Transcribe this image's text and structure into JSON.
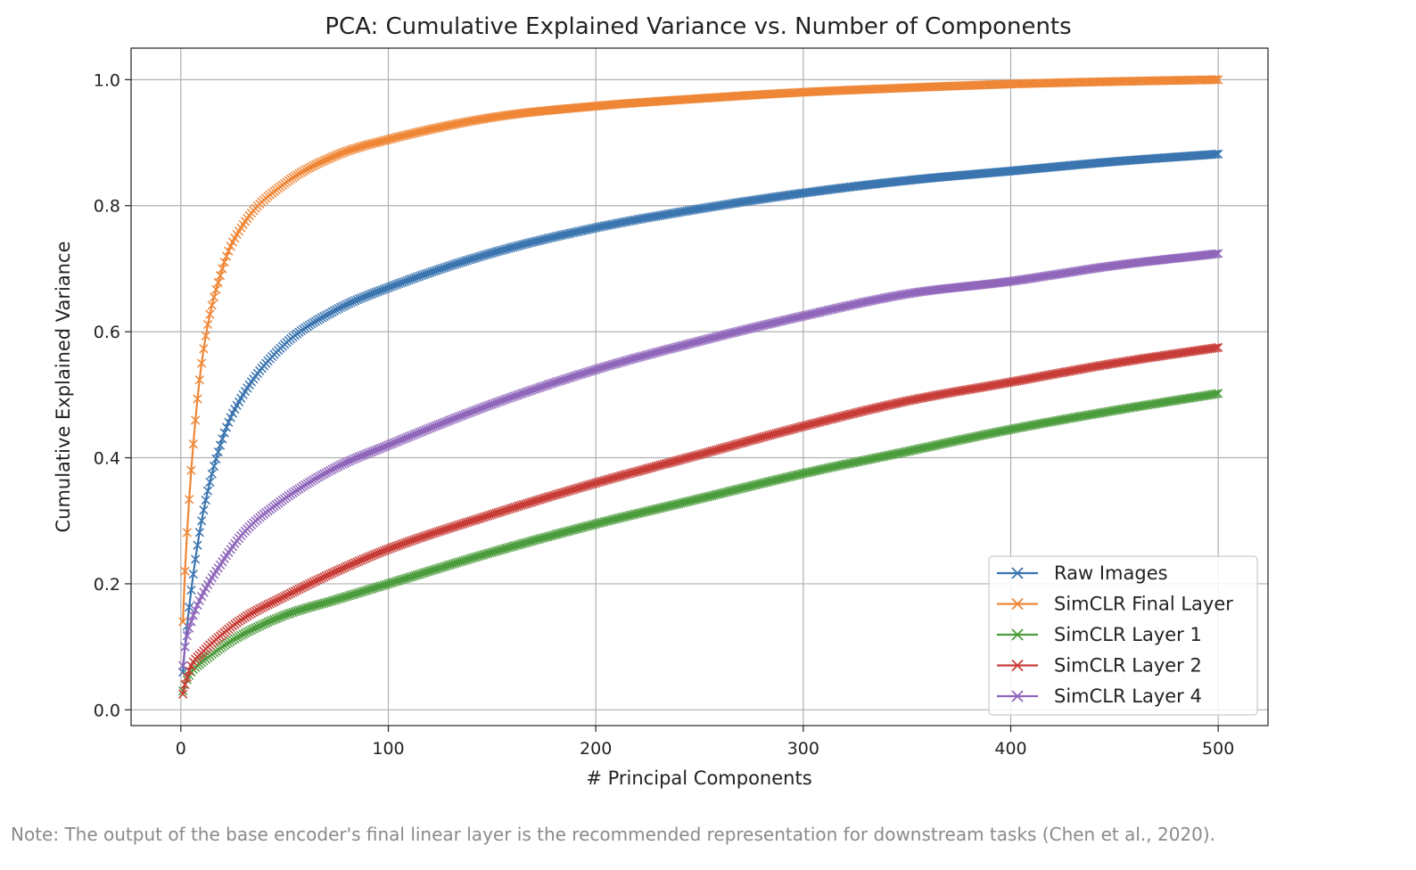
{
  "chart_data": {
    "type": "line",
    "title": "PCA: Cumulative Explained Variance vs. Number of Components",
    "xlabel": "# Principal Components",
    "ylabel": "Cumulative Explained Variance",
    "xlim": [
      -24,
      524
    ],
    "ylim": [
      -0.025,
      1.05
    ],
    "xticks": [
      0,
      100,
      200,
      300,
      400,
      500
    ],
    "xtick_labels": [
      "0",
      "100",
      "200",
      "300",
      "400",
      "500"
    ],
    "yticks": [
      0.0,
      0.2,
      0.4,
      0.6,
      0.8,
      1.0
    ],
    "ytick_labels": [
      "0.0",
      "0.2",
      "0.4",
      "0.6",
      "0.8",
      "1.0"
    ],
    "grid": true,
    "legend_position": "lower-right",
    "marker": "x",
    "x": [
      1,
      2,
      5,
      10,
      20,
      30,
      50,
      75,
      100,
      150,
      200,
      250,
      300,
      350,
      400,
      450,
      500
    ],
    "series": [
      {
        "name": "Raw Images",
        "color": "#3a75b0",
        "values": [
          0.06,
          0.1,
          0.19,
          0.3,
          0.43,
          0.5,
          0.58,
          0.635,
          0.67,
          0.725,
          0.765,
          0.795,
          0.82,
          0.84,
          0.855,
          0.87,
          0.882
        ]
      },
      {
        "name": "SimCLR Final Layer",
        "color": "#ef8636",
        "values": [
          0.14,
          0.22,
          0.38,
          0.55,
          0.7,
          0.77,
          0.835,
          0.88,
          0.905,
          0.94,
          0.958,
          0.97,
          0.98,
          0.987,
          0.993,
          0.997,
          1.0
        ]
      },
      {
        "name": "SimCLR Layer 1",
        "color": "#4b9c3c",
        "values": [
          0.03,
          0.04,
          0.06,
          0.075,
          0.1,
          0.12,
          0.15,
          0.175,
          0.2,
          0.25,
          0.295,
          0.335,
          0.375,
          0.41,
          0.445,
          0.475,
          0.502
        ]
      },
      {
        "name": "SimCLR Layer 2",
        "color": "#c83c37",
        "values": [
          0.025,
          0.04,
          0.07,
          0.09,
          0.12,
          0.145,
          0.18,
          0.22,
          0.255,
          0.31,
          0.36,
          0.405,
          0.45,
          0.49,
          0.52,
          0.55,
          0.575
        ]
      },
      {
        "name": "SimCLR Layer 4",
        "color": "#9066bb",
        "values": [
          0.07,
          0.1,
          0.14,
          0.18,
          0.235,
          0.28,
          0.335,
          0.385,
          0.42,
          0.485,
          0.54,
          0.585,
          0.625,
          0.66,
          0.68,
          0.705,
          0.724
        ]
      }
    ]
  },
  "note": "Note: The output of the base encoder's final linear layer is the recommended representation for downstream tasks (Chen et al., 2020)."
}
